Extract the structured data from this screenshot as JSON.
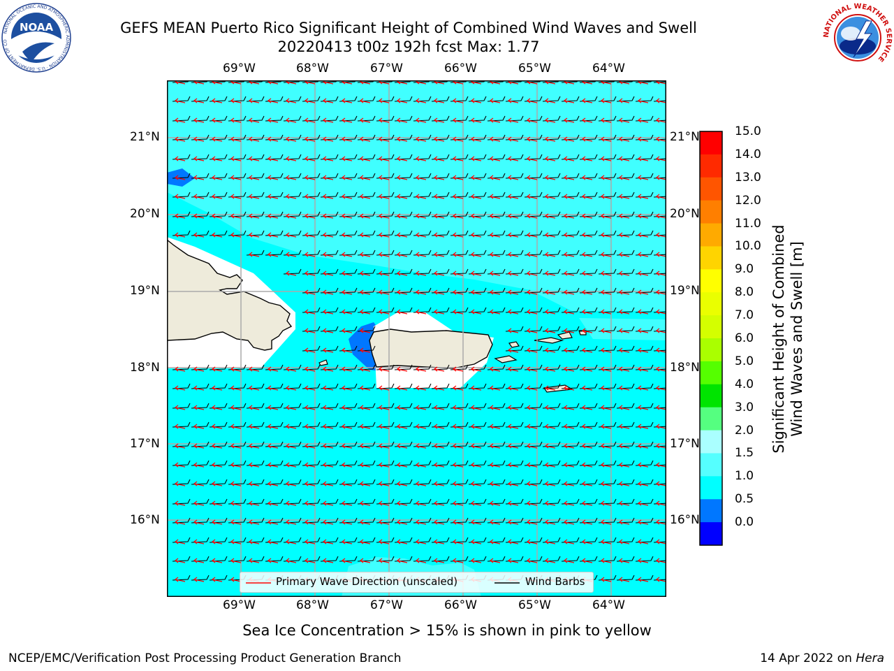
{
  "title": {
    "line1": "GEFS MEAN Puerto Rico Significant Height of Combined Wind Waves and Swell",
    "line2": "20220413 t00z 192h fcst   Max: 1.77"
  },
  "map": {
    "lon_ticks": [
      "69°W",
      "68°W",
      "67°W",
      "66°W",
      "65°W",
      "64°W"
    ],
    "lat_ticks": [
      "21°N",
      "20°N",
      "19°N",
      "18°N",
      "17°N",
      "16°N"
    ],
    "colors": {
      "ocean_main": "#00ffff",
      "ocean_light": "#40ffff",
      "ocean_low": "#0077ff",
      "land": "#eeebdb",
      "wave_arrow": "#ff0000",
      "wind_barb": "#000000",
      "gridline": "#aaaaaa"
    },
    "wind_direction": "from east",
    "wave_direction": "toward west"
  },
  "legend": {
    "wave_label": "Primary Wave Direction (unscaled)",
    "barb_label": "Wind Barbs"
  },
  "colorbar": {
    "label_line1": "Significant Height of Combined",
    "label_line2": "Wind Waves and Swell [m]",
    "ticks": [
      "15.0",
      "14.0",
      "13.0",
      "12.0",
      "11.0",
      "10.0",
      "9.0",
      "8.0",
      "7.0",
      "6.0",
      "5.0",
      "4.0",
      "3.0",
      "2.0",
      "1.5",
      "1.0",
      "0.5",
      "0.0"
    ],
    "segment_colors": [
      "#ff0000",
      "#ff2a00",
      "#ff5500",
      "#ff7f00",
      "#ffaa00",
      "#ffd400",
      "#ffff00",
      "#eaff00",
      "#d4ff00",
      "#aaff00",
      "#55ff00",
      "#00e400",
      "#55ff80",
      "#aaffff",
      "#55ffff",
      "#00ffff",
      "#0077ff",
      "#0000ff"
    ]
  },
  "note": "Sea Ice Concentration > 15% is shown in pink to yellow",
  "footer": {
    "left": "NCEP/EMC/Verification Post Processing Product Generation Branch",
    "right_prefix": "14 Apr 2022 on ",
    "right_host": "Hera"
  },
  "logos": {
    "noaa_text": "NOAA",
    "noaa_ring_text": "NATIONAL OCEANIC AND ATMOSPHERIC ADMINISTRATION · U.S. DEPARTMENT OF COMMERCE",
    "nws_ring_text": "NATIONAL WEATHER SERVICE"
  }
}
